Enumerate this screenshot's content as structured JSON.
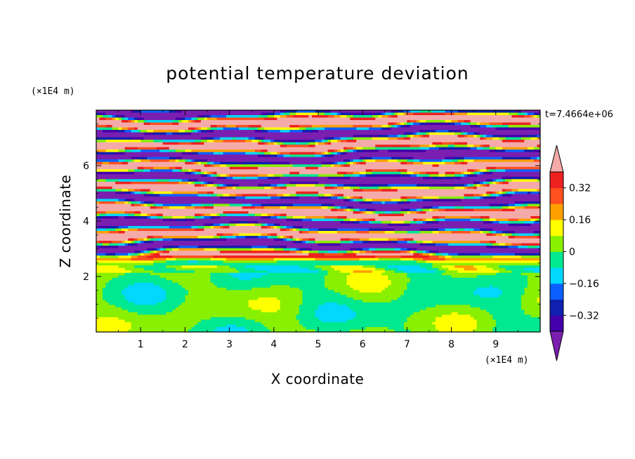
{
  "chart_data": {
    "type": "contour",
    "title": "potential temperature deviation",
    "xlabel": "X coordinate",
    "ylabel": "Z coordinate",
    "x_unit": "(×1E4 m)",
    "y_unit": "(×1E4 m)",
    "time_label": "t=7.4664e+06",
    "xlim": [
      0,
      10
    ],
    "ylim": [
      0,
      8
    ],
    "x_ticks": [
      1,
      2,
      3,
      4,
      5,
      6,
      7,
      8,
      9
    ],
    "y_ticks": [
      2,
      4,
      6
    ],
    "colorbar": {
      "tick_labels": [
        "0.32",
        "0.16",
        "0",
        "−0.16",
        "−0.32"
      ],
      "tick_values": [
        0.32,
        0.16,
        0,
        -0.16,
        -0.32
      ],
      "levels": [
        -0.4,
        -0.32,
        -0.24,
        -0.16,
        -0.08,
        0,
        0.08,
        0.16,
        0.24,
        0.32,
        0.4
      ],
      "colors": [
        "#7a1fb0",
        "#4400aa",
        "#1020b0",
        "#0a60ff",
        "#00d8ff",
        "#00e890",
        "#88f000",
        "#ffff00",
        "#ffa000",
        "#ff5020",
        "#ee2020",
        "#f5aaaa"
      ]
    },
    "field_description": "below z=2.4: weak anomalies near 0 (green); above: alternating layers of positive (pink, >0.4) and negative (purple, <-0.4) deviation"
  }
}
